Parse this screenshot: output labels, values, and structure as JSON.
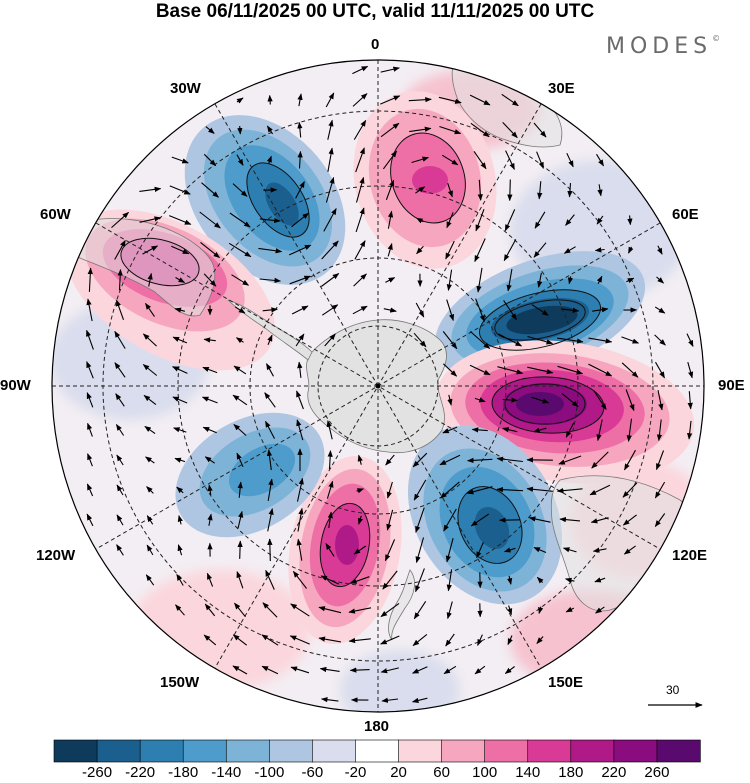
{
  "header": {
    "title": "Base 06/11/2025 00 UTC, valid 11/11/2025 00 UTC",
    "brand": "MODES",
    "brand_mark": "©"
  },
  "map": {
    "projection": "south-polar-stereographic",
    "labels": {
      "lon_0": "0",
      "lon_30e": "30E",
      "lon_60e": "60E",
      "lon_90e": "90E",
      "lon_120e": "120E",
      "lon_150e": "150E",
      "lon_180": "180",
      "lon_150w": "150W",
      "lon_120w": "120W",
      "lon_90w": "90W",
      "lon_60w": "60W",
      "lon_30w": "30W"
    },
    "reference_vector": "30"
  },
  "colorbar": {
    "colors": [
      "#0e3b5c",
      "#1b5f8f",
      "#2d7fb2",
      "#4d9ccb",
      "#7eb3d8",
      "#aec6e2",
      "#d9dded",
      "#ffffff",
      "#fbd6dc",
      "#f6a6bf",
      "#ee6fa6",
      "#d93a96",
      "#b01a88",
      "#8a0c7e",
      "#5a0a6e"
    ],
    "ticks": [
      "-260",
      "-220",
      "-180",
      "-140",
      "-100",
      "-60",
      "-20",
      "20",
      "60",
      "100",
      "140",
      "180",
      "220",
      "260"
    ]
  },
  "colors": {
    "land": "#e2e2e2",
    "coast": "#777777",
    "grid": "#222222"
  }
}
